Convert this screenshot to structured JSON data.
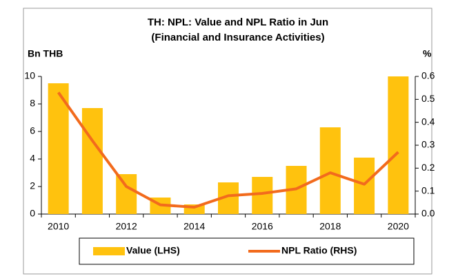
{
  "chart_data": {
    "type": "bar_line",
    "title": "TH: NPL: Value and NPL Ratio in Jun",
    "subtitle": "(Financial and Insurance Activities)",
    "y_label": "Bn THB",
    "y2_label": "%",
    "categories": [
      "2010",
      null,
      "2012",
      null,
      "2014",
      null,
      "2016",
      null,
      "2018",
      null,
      "2020"
    ],
    "series": [
      {
        "name": "Value (LHS)",
        "type": "bar",
        "color": "#ffc20e",
        "values": [
          9.5,
          7.7,
          2.9,
          1.2,
          0.7,
          2.3,
          2.7,
          3.5,
          6.3,
          4.1,
          10.0
        ]
      },
      {
        "name": "NPL Ratio (RHS)",
        "type": "line",
        "axis": "y2",
        "color": "#f26b1d",
        "values": [
          0.53,
          0.32,
          0.12,
          0.04,
          0.03,
          0.08,
          0.09,
          0.11,
          0.18,
          0.13,
          0.27
        ]
      }
    ],
    "ylim": [
      0,
      10
    ],
    "yticks": [
      0,
      2,
      4,
      6,
      8,
      10
    ],
    "y2lim": [
      0,
      0.6
    ],
    "y2ticks": [
      {
        "value": 0,
        "label": "0.0"
      },
      0.1,
      0.2,
      0.3,
      0.4,
      0.5,
      0.6
    ],
    "legend": "bottom"
  }
}
